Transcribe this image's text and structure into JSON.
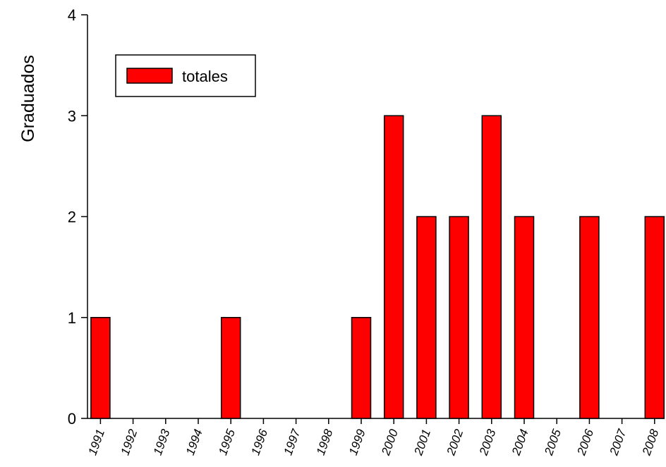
{
  "chart_data": {
    "type": "bar",
    "categories": [
      "1991",
      "1992",
      "1993",
      "1994",
      "1995",
      "1996",
      "1997",
      "1998",
      "1999",
      "2000",
      "2001",
      "2002",
      "2003",
      "2004",
      "2005",
      "2006",
      "2007",
      "2008"
    ],
    "series": [
      {
        "name": "totales",
        "values": [
          1,
          0,
          0,
          0,
          1,
          0,
          0,
          0,
          1,
          3,
          2,
          2,
          3,
          2,
          0,
          2,
          0,
          2
        ]
      }
    ],
    "ylabel": "Graduados",
    "xlabel": "",
    "ylim": [
      0,
      4
    ],
    "yticks": [
      0,
      1,
      2,
      3,
      4
    ],
    "grid": false,
    "legend_placement": "top-left",
    "colors": {
      "bar_fill": "#ff0000",
      "bar_stroke": "#000000"
    }
  }
}
